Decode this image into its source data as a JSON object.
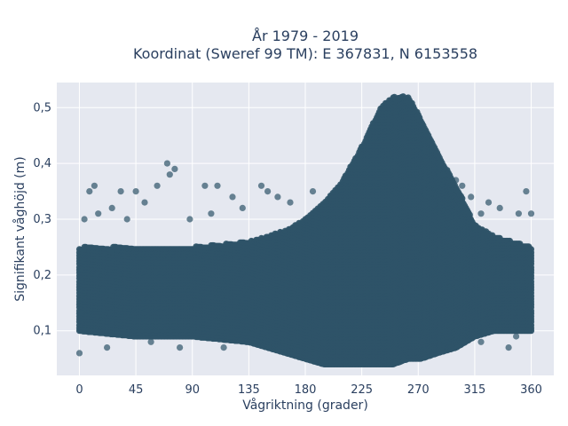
{
  "chart_data": {
    "type": "scatter",
    "title_line1": "År 1979 - 2019",
    "title_line2": "Koordinat (Sweref 99 TM): E 367831, N 6153558",
    "xlabel": "Vågriktning (grader)",
    "ylabel": "Signifikant våghöjd (m)",
    "xlim": [
      -18,
      378
    ],
    "ylim": [
      0.02,
      0.545
    ],
    "x_ticks": [
      0,
      45,
      90,
      135,
      180,
      225,
      270,
      315,
      360
    ],
    "x_tick_labels": [
      "0",
      "45",
      "90",
      "135",
      "180",
      "225",
      "270",
      "315",
      "360"
    ],
    "y_ticks": [
      0.1,
      0.2,
      0.3,
      0.4,
      0.5
    ],
    "y_tick_labels": [
      "0,1",
      "0,2",
      "0,3",
      "0,4",
      "0,5"
    ],
    "grid": true,
    "legend": "none",
    "marker_color": "#2f5468",
    "background_color": "#e5e8f0",
    "series": [
      {
        "x_step": 1,
        "density_profile": [
          {
            "x": 0,
            "ymin": 0.1,
            "ymax": 0.25
          },
          {
            "x": 45,
            "ymin": 0.09,
            "ymax": 0.25
          },
          {
            "x": 90,
            "ymin": 0.09,
            "ymax": 0.25
          },
          {
            "x": 135,
            "ymin": 0.08,
            "ymax": 0.26
          },
          {
            "x": 165,
            "ymin": 0.06,
            "ymax": 0.28
          },
          {
            "x": 180,
            "ymin": 0.05,
            "ymax": 0.3
          },
          {
            "x": 195,
            "ymin": 0.04,
            "ymax": 0.33
          },
          {
            "x": 210,
            "ymin": 0.04,
            "ymax": 0.37
          },
          {
            "x": 225,
            "ymin": 0.04,
            "ymax": 0.43
          },
          {
            "x": 240,
            "ymin": 0.04,
            "ymax": 0.5
          },
          {
            "x": 250,
            "ymin": 0.04,
            "ymax": 0.52
          },
          {
            "x": 262,
            "ymin": 0.05,
            "ymax": 0.52
          },
          {
            "x": 272,
            "ymin": 0.05,
            "ymax": 0.48
          },
          {
            "x": 285,
            "ymin": 0.06,
            "ymax": 0.42
          },
          {
            "x": 300,
            "ymin": 0.07,
            "ymax": 0.36
          },
          {
            "x": 315,
            "ymin": 0.09,
            "ymax": 0.29
          },
          {
            "x": 330,
            "ymin": 0.1,
            "ymax": 0.27
          },
          {
            "x": 345,
            "ymin": 0.1,
            "ymax": 0.26
          },
          {
            "x": 360,
            "ymin": 0.1,
            "ymax": 0.25
          }
        ],
        "outliers": [
          [
            0,
            0.06
          ],
          [
            4,
            0.3
          ],
          [
            8,
            0.35
          ],
          [
            12,
            0.36
          ],
          [
            15,
            0.31
          ],
          [
            22,
            0.07
          ],
          [
            26,
            0.32
          ],
          [
            33,
            0.35
          ],
          [
            38,
            0.3
          ],
          [
            45,
            0.35
          ],
          [
            52,
            0.33
          ],
          [
            57,
            0.08
          ],
          [
            62,
            0.36
          ],
          [
            70,
            0.4
          ],
          [
            72,
            0.38
          ],
          [
            76,
            0.39
          ],
          [
            80,
            0.07
          ],
          [
            88,
            0.3
          ],
          [
            100,
            0.36
          ],
          [
            105,
            0.31
          ],
          [
            110,
            0.36
          ],
          [
            115,
            0.07
          ],
          [
            122,
            0.34
          ],
          [
            130,
            0.32
          ],
          [
            145,
            0.36
          ],
          [
            150,
            0.35
          ],
          [
            158,
            0.34
          ],
          [
            168,
            0.33
          ],
          [
            186,
            0.35
          ],
          [
            290,
            0.38
          ],
          [
            300,
            0.37
          ],
          [
            305,
            0.36
          ],
          [
            312,
            0.34
          ],
          [
            320,
            0.31
          ],
          [
            326,
            0.33
          ],
          [
            335,
            0.32
          ],
          [
            342,
            0.07
          ],
          [
            350,
            0.31
          ],
          [
            356,
            0.35
          ],
          [
            360,
            0.31
          ],
          [
            348,
            0.09
          ],
          [
            320,
            0.08
          ]
        ]
      }
    ]
  }
}
